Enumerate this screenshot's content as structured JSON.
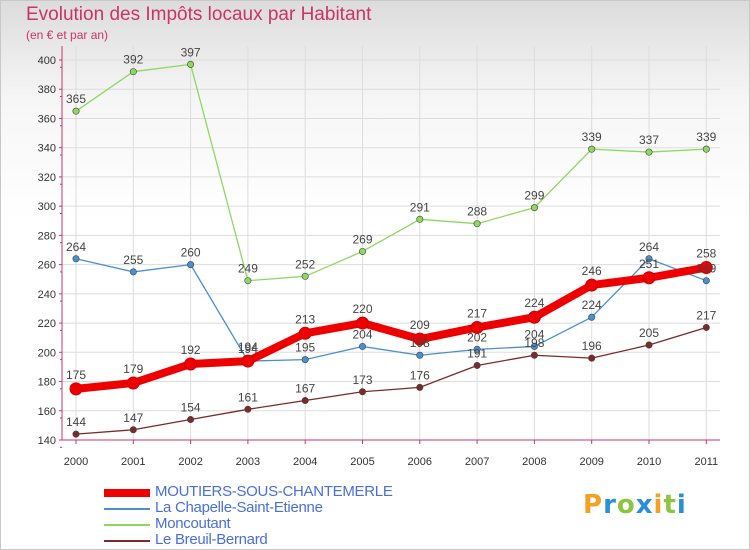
{
  "chart_data": {
    "type": "line",
    "title": "Evolution des Impôts locaux par Habitant",
    "subtitle": "(en € et par an)",
    "x": [
      "2000",
      "2001",
      "2002",
      "2003",
      "2004",
      "2005",
      "2006",
      "2007",
      "2008",
      "2009",
      "2010",
      "2011"
    ],
    "ylim": [
      140,
      400
    ],
    "yticks": [
      140,
      160,
      180,
      200,
      220,
      240,
      260,
      280,
      300,
      320,
      340,
      360,
      380,
      400
    ],
    "grid": true,
    "legend_position": "bottom-left",
    "series": [
      {
        "name": "MOUTIERS-SOUS-CHANTEMERLE",
        "color": "#ee0000",
        "values": [
          175,
          179,
          192,
          194,
          213,
          220,
          209,
          217,
          224,
          246,
          251,
          258
        ]
      },
      {
        "name": "La Chapelle-Saint-Etienne",
        "color": "#4a90d0",
        "values": [
          264,
          255,
          260,
          194,
          195,
          204,
          198,
          202,
          204,
          224,
          264,
          249
        ]
      },
      {
        "name": "Moncoutant",
        "color": "#8ed860",
        "values": [
          365,
          392,
          397,
          249,
          252,
          269,
          291,
          288,
          299,
          339,
          337,
          339
        ]
      },
      {
        "name": "Le Breuil-Bernard",
        "color": "#7a2a2a",
        "values": [
          144,
          147,
          154,
          161,
          167,
          173,
          176,
          191,
          198,
          196,
          205,
          217
        ]
      }
    ]
  },
  "logo": {
    "letters": [
      "P",
      "r",
      "o",
      "x",
      "i",
      "t",
      "i"
    ]
  }
}
